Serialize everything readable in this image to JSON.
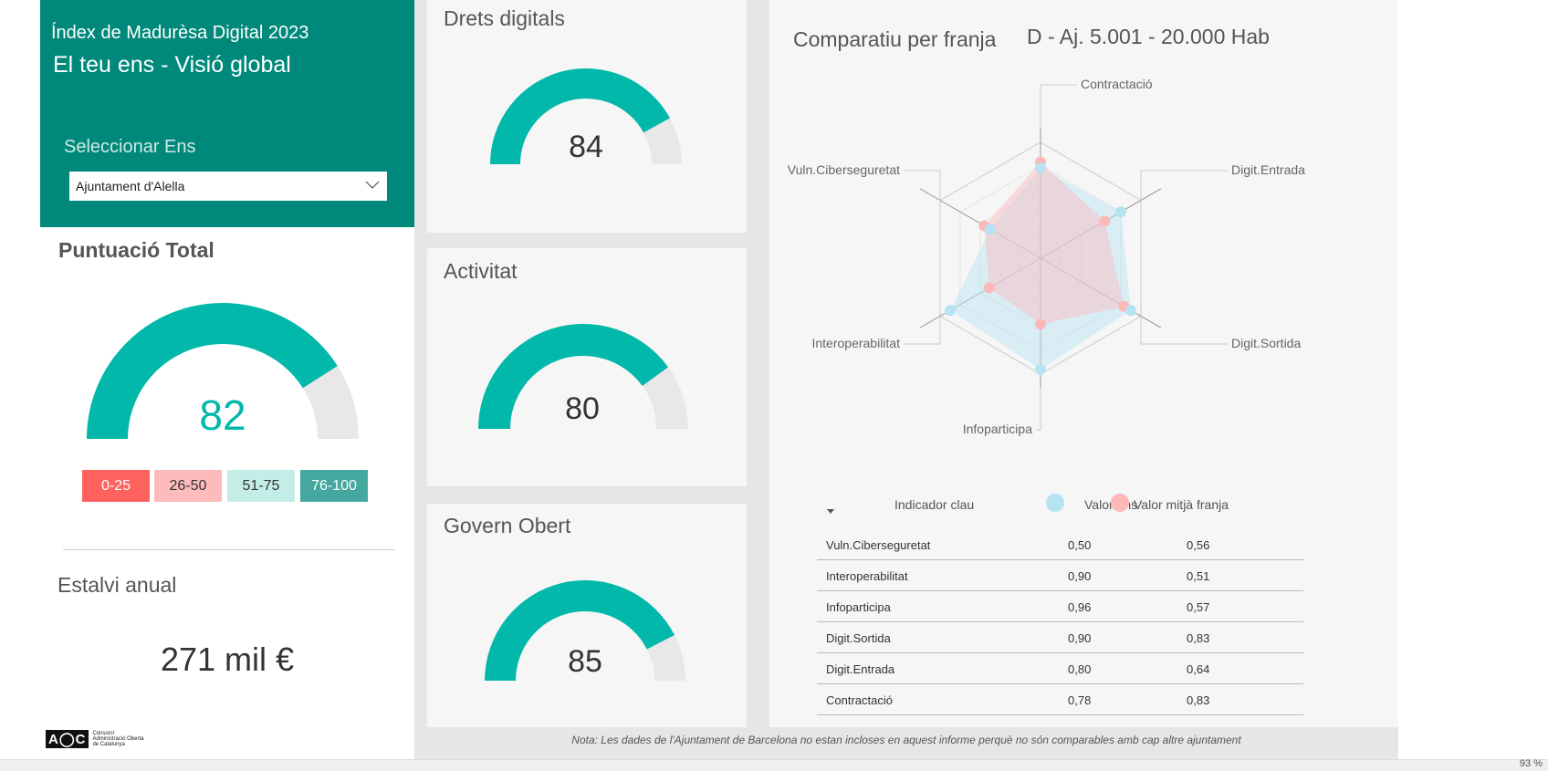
{
  "header": {
    "title": "Índex de Madurèsa Digital 2023",
    "subtitle": "El teu ens - Visió global",
    "select_label": "Seleccionar Ens",
    "select_value": "Ajuntament d'Alella"
  },
  "total": {
    "title": "Puntuació Total",
    "value": 82,
    "legend": [
      {
        "label": "0-25",
        "color": "#fd625e"
      },
      {
        "label": "26-50",
        "color": "#fdbbbb"
      },
      {
        "label": "51-75",
        "color": "#c5ede8"
      },
      {
        "label": "76-100",
        "color": "#44a89f"
      }
    ]
  },
  "savings": {
    "title": "Estalvi anual",
    "value": "271 mil €"
  },
  "logo": {
    "text": "AOC",
    "caption": "Consorci Administració Oberta de Catalunya"
  },
  "cards": [
    {
      "title": "Drets digitals",
      "value": 84
    },
    {
      "title": "Activitat",
      "value": 80
    },
    {
      "title": "Govern Obert",
      "value": 85
    }
  ],
  "colors": {
    "teal": "#01b8aa",
    "track": "#e8e8e8",
    "header": "#00897b",
    "blue": "#b5e3f2",
    "pink": "#fdb8b8"
  },
  "chart_data": {
    "type": "radar",
    "title": "Comparatiu per franja",
    "subtitle": "D - Aj. 5.001 - 20.000 Hab",
    "categories": [
      "Contractació",
      "Digit.Entrada",
      "Digit.Sortida",
      "Infoparticipa",
      "Interoperabilitat",
      "Vuln.Ciberseguretat"
    ],
    "series": [
      {
        "name": "Valor ens",
        "values": [
          0.78,
          0.8,
          0.9,
          0.96,
          0.9,
          0.5
        ]
      },
      {
        "name": "Valor mitjà franja",
        "values": [
          0.83,
          0.64,
          0.83,
          0.57,
          0.51,
          0.56
        ]
      }
    ],
    "range": [
      0,
      1
    ]
  },
  "table": {
    "headers": [
      "Indicador clau",
      "Valor ens",
      "Valor mitjà franja"
    ],
    "rows": [
      [
        "Vuln.Ciberseguretat",
        "0,50",
        "0,56"
      ],
      [
        "Interoperabilitat",
        "0,90",
        "0,51"
      ],
      [
        "Infoparticipa",
        "0,96",
        "0,57"
      ],
      [
        "Digit.Sortida",
        "0,90",
        "0,83"
      ],
      [
        "Digit.Entrada",
        "0,80",
        "0,64"
      ],
      [
        "Contractació",
        "0,78",
        "0,83"
      ]
    ]
  },
  "note": "Nota: Les dades de l'Ajuntament de Barcelona no estan incloses en aquest informe perquè no són comparables amb cap altre ajuntament",
  "statusbar": {
    "zoom": "93 %"
  }
}
